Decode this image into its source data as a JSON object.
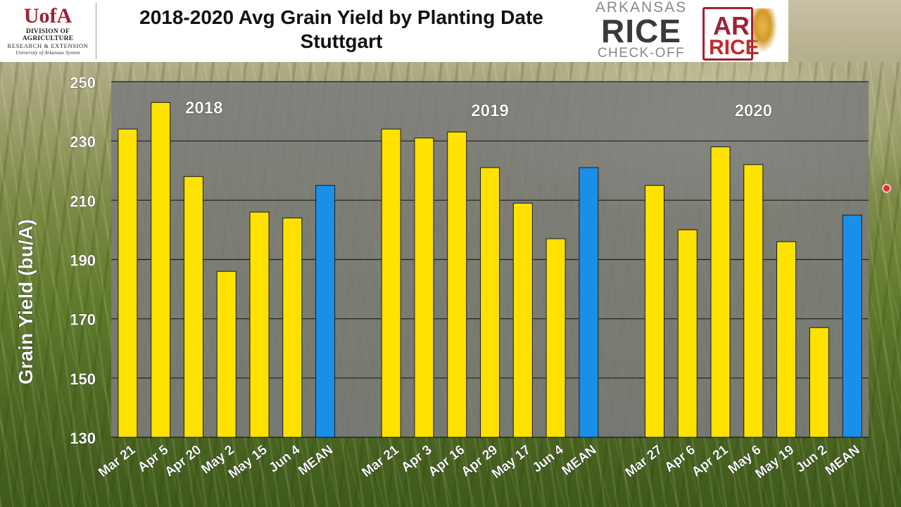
{
  "header": {
    "title": "2018-2020 Avg Grain Yield by Planting Date",
    "subtitle": "Stuttgart",
    "uofa_mark": "UofA",
    "uofa_line1": "DIVISION OF AGRICULTURE",
    "uofa_line2": "RESEARCH & EXTENSION",
    "uofa_line3": "University of Arkansas System",
    "checkoff_top": "ARKANSAS",
    "checkoff_mid": "RICE",
    "checkoff_bot": "CHECK-OFF",
    "ar_line1": "AR",
    "ar_line2": "RICE"
  },
  "colors": {
    "bar_yellow": "#ffe200",
    "bar_blue": "#1a8fe8",
    "plot_bg": "#7c7c7c",
    "brand_red": "#9d2235"
  },
  "chart_data": {
    "type": "bar",
    "title": "2018-2020 Avg Grain Yield by Planting Date",
    "subtitle": "Stuttgart",
    "ylabel": "Grain Yield (bu/A)",
    "ylim": [
      130,
      250
    ],
    "yticks": [
      130,
      150,
      170,
      190,
      210,
      230,
      250
    ],
    "grid": true,
    "groups": [
      {
        "name": "2018",
        "categories": [
          "Mar 21",
          "Apr 5",
          "Apr 20",
          "May 2",
          "May 15",
          "Jun 4",
          "MEAN"
        ],
        "values": [
          234,
          243,
          218,
          186,
          206,
          204,
          215
        ]
      },
      {
        "name": "2019",
        "categories": [
          "Mar 21",
          "Apr 3",
          "Apr 16",
          "Apr 29",
          "May 17",
          "Jun 4",
          "MEAN"
        ],
        "values": [
          234,
          231,
          233,
          221,
          209,
          197,
          221
        ]
      },
      {
        "name": "2020",
        "categories": [
          "Mar 27",
          "Apr 6",
          "Apr 21",
          "May 6",
          "May 19",
          "Jun 2",
          "MEAN"
        ],
        "values": [
          215,
          200,
          228,
          222,
          196,
          167,
          205
        ]
      }
    ]
  }
}
